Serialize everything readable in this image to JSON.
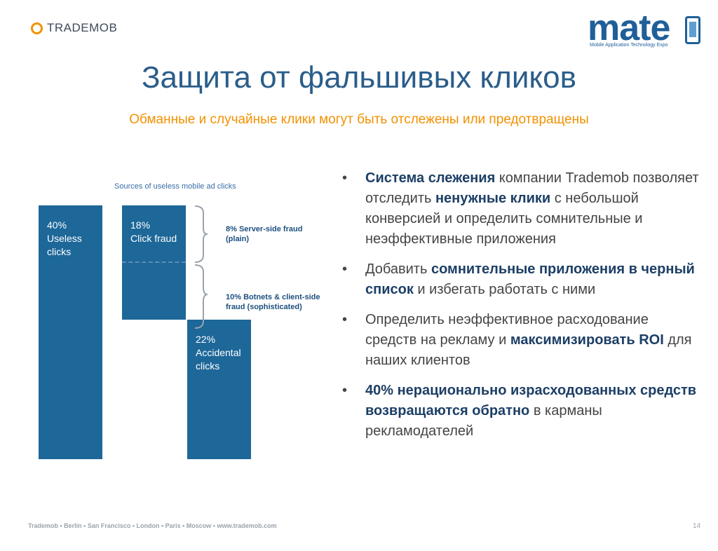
{
  "header": {
    "brand_name": "TRADEMOB",
    "mate_logo": {
      "word": "mate",
      "tagline": "Mobile Application Technology Expo"
    },
    "title": "Защита от фальшивых кликов",
    "subtitle": "Обманные и случайные клики могут быть отслежены или предотвращены"
  },
  "chart_data": {
    "type": "bar",
    "title": "Sources of useless mobile ad clicks",
    "categories": [
      "Useless clicks",
      "Click fraud",
      "Accidental clicks"
    ],
    "values": [
      40,
      18,
      22
    ],
    "unit": "%",
    "bar_color": "#1d6799",
    "bar_labels": [
      [
        "40%",
        "Useless",
        "clicks"
      ],
      [
        "18%",
        "Click fraud"
      ],
      [
        "22%",
        "Accidental",
        "clicks"
      ]
    ],
    "annotations": [
      {
        "value": 8,
        "lines": [
          "8% Server-side fraud",
          "(plain)"
        ]
      },
      {
        "value": 10,
        "lines": [
          "10% Botnets & client-side",
          "fraud (sophisticated)"
        ]
      }
    ]
  },
  "bullets": [
    [
      {
        "text": "Система слежения",
        "bold": true
      },
      {
        "text": " компании Trademob позволяет отследить ",
        "bold": false
      },
      {
        "text": "ненужные клики",
        "bold": true
      },
      {
        "text": " с небольшой конверсией и определить сомнительные и неэффективные приложения",
        "bold": false
      }
    ],
    [
      {
        "text": "Добавить ",
        "bold": false
      },
      {
        "text": "сомнительные приложения в черный список",
        "bold": true
      },
      {
        "text": " и избегать работать с ними",
        "bold": false
      }
    ],
    [
      {
        "text": "Определить неэффективное расходование средств на рекламу и ",
        "bold": false
      },
      {
        "text": "максимизировать ROI",
        "bold": true
      },
      {
        "text": " для наших клиентов",
        "bold": false
      }
    ],
    [
      {
        "text": "40% нерационально израсходованных средств возвращаются обратно",
        "bold": true
      },
      {
        "text": " в карманы рекламодателей",
        "bold": false
      }
    ]
  ],
  "footer": {
    "text": "Trademob  • Berlin • San Francisco • London • Paris • Moscow • www.trademob.com",
    "page_number": "14"
  },
  "colors": {
    "accent_orange": "#f29100",
    "title_blue": "#2a5d8a",
    "bar_blue": "#1d6799"
  }
}
